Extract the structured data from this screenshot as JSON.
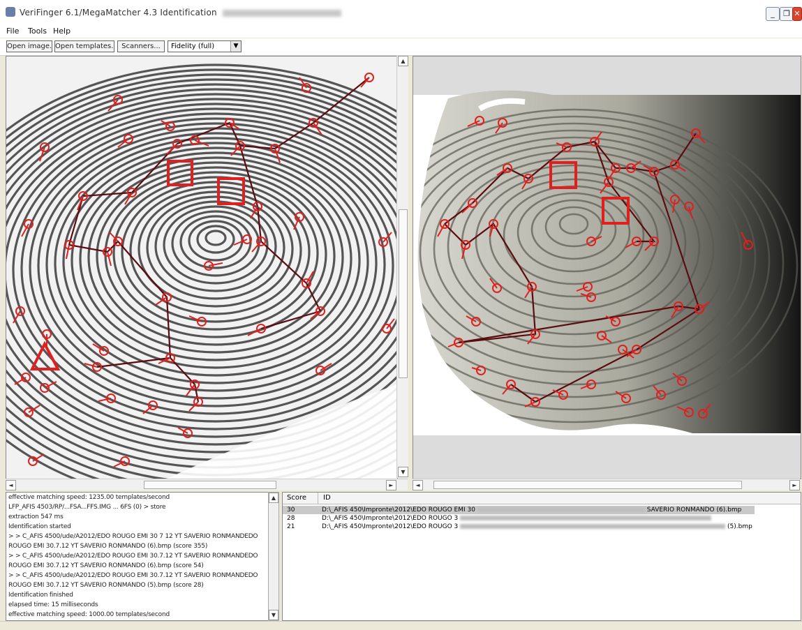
{
  "window": {
    "title": "VeriFinger 6.1/MegaMatcher 4.3 Identification",
    "minimize_glyph": "_",
    "restore_glyph": "❐",
    "close_glyph": "✕"
  },
  "menu": [
    "File",
    "Tools",
    "Help"
  ],
  "toolbar": {
    "open_image": "Open image...",
    "open_templates": "Open templates...",
    "scanners": "Scanners...",
    "quality_select": "Fidelity (full)"
  },
  "left_view": {
    "grayscale": true,
    "scroll_arrows": {
      "up": "▲",
      "down": "▼",
      "left": "◄",
      "right": "►"
    }
  },
  "right_view": {
    "scroll_arrows": {
      "left": "◄",
      "right": "►"
    }
  },
  "log": {
    "lines": [
      "effective matching speed: 1235.00 templates/second",
      "LFP_AFIS 4503/RP/...FSA...FFS.IMG ... 6FS (0) > store",
      "extraction 547 ms",
      "  Identification started",
      "> > C_AFIS 4500/ude/A2012/EDO ROUGO EMI 30 7 12 YT SAVERIO RONMANDEDO",
      "ROUGO EMI 30.7.12 YT SAVERIO RONMANDO (6).bmp (score 355)",
      "> > C_AFIS 4500/ude/A2012/EDO ROUGO EMI 30.7.12 YT SAVERIO RONMANDEDO",
      "ROUGO EMI 30.7.12 YT SAVERIO RONMANDO (6).bmp (score 54)",
      "> > C_AFIS 4500/ude/A2012/EDO ROUGO EMI 30.7.12 YT SAVERIO RONMANDEDO",
      "ROUGO EMI 30.7.12 YT SAVERIO RONMANDO (5).bmp (score 28)",
      "  Identification finished",
      "elapsed time: 15 milliseconds",
      "effective matching speed: 1000.00 templates/second"
    ],
    "scroll_up": "▲",
    "scroll_down": "▼"
  },
  "results": {
    "columns": [
      "Score",
      "ID"
    ],
    "rows": [
      {
        "score": "30",
        "id": "D:\\_AFIS 450\\Impronte\\2012\\EDO ROUGO EMI 30",
        "tail": "SAVERIO RONMANDO (6).bmp",
        "selected": true
      },
      {
        "score": "28",
        "id": "D:\\_AFIS 450\\Impronte\\2012\\EDO ROUGO 3",
        "tail": "",
        "selected": false
      },
      {
        "score": "21",
        "id": "D:\\_AFIS 450\\Impronte\\2012\\EDO ROUGO 3",
        "tail": "(5).bmp",
        "selected": false
      }
    ]
  },
  "colors": {
    "minutia": "#e0201e",
    "match_line": "#5a0c10",
    "selection": "#c9c9c9"
  }
}
